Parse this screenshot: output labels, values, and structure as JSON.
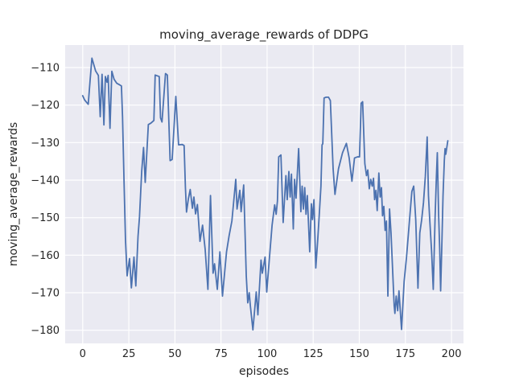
{
  "colors": {
    "figure_background": "#ffffff",
    "axes_background": "#eaeaf2",
    "grid": "#ffffff",
    "line": "#4c72b0",
    "text": "#262626"
  },
  "chart_data": {
    "type": "line",
    "title": "moving_average_rewards of DDPG",
    "xlabel": "episodes",
    "ylabel": "moving_average_rewards",
    "xlim": [
      -9.5,
      206.5
    ],
    "ylim": [
      -183.5,
      -104.0
    ],
    "xticks": [
      0,
      25,
      50,
      75,
      100,
      125,
      150,
      175,
      200
    ],
    "yticks": [
      -110,
      -120,
      -130,
      -140,
      -150,
      -160,
      -170,
      -180
    ],
    "grid": true,
    "legend_position": "none",
    "series": [
      {
        "name": "moving_average_rewards",
        "color": "#4c72b0",
        "x": [
          0,
          1,
          2,
          3,
          4,
          5,
          6,
          7,
          8.5,
          9.5,
          10.5,
          11.5,
          12.3,
          13.2,
          13.8,
          14.8,
          15.8,
          17,
          18.5,
          20,
          21,
          21.6,
          22.4,
          23.2,
          24.1,
          25.4,
          26.4,
          27.8,
          28.8,
          30,
          30.8,
          32,
          33,
          33.9,
          35.6,
          37,
          38.6,
          39.3,
          41.5,
          42.2,
          43,
          44.9,
          45.9,
          47.4,
          48.5,
          50.5,
          52,
          54,
          55,
          55.7,
          56.3,
          57.3,
          58.3,
          59.5,
          60.3,
          61.2,
          62.2,
          63.6,
          65,
          66.4,
          67.9,
          69.3,
          70.7,
          71.5,
          73,
          74.4,
          75.8,
          78,
          79.4,
          80.9,
          83,
          83.7,
          85.2,
          85.9,
          87.3,
          88.7,
          89.5,
          90.3,
          90.9,
          92.3,
          94.1,
          95,
          96.7,
          97.4,
          98.9,
          99.8,
          101.3,
          102.7,
          104.1,
          104.9,
          105.6,
          106.3,
          107.5,
          108.7,
          110.2,
          110.9,
          111.8,
          112.5,
          113.2,
          114.2,
          114.9,
          115.7,
          117.1,
          118.3,
          119,
          119.7,
          120.4,
          121.1,
          121.8,
          123.1,
          124,
          124.6,
          125.4,
          126.4,
          127.4,
          128.3,
          129.2,
          129.8,
          130.2,
          130.9,
          132,
          133.3,
          134.3,
          135.8,
          136.8,
          138.7,
          140.9,
          143,
          144.5,
          146,
          147.4,
          149,
          150.1,
          151,
          151.8,
          153,
          153.9,
          154.6,
          155.4,
          156.2,
          157,
          157.7,
          158.3,
          159,
          159.7,
          160.6,
          161.3,
          162,
          162.6,
          163.3,
          164,
          164.7,
          165.5,
          166.4,
          167.2,
          168.9,
          169.3,
          170,
          170.8,
          171.5,
          172.9,
          174.3,
          175.6,
          177,
          178.5,
          179.5,
          180.6,
          181.8,
          182.8,
          183.8,
          184.8,
          185.8,
          186.8,
          187.5,
          188.2,
          189.2,
          190.1,
          191.1,
          191.8,
          192.3,
          193,
          193.6,
          194.1,
          194.7,
          195.4,
          196.1,
          196.5,
          196.9,
          198
        ],
        "y": [
          -117.5,
          -118.6,
          -119.2,
          -119.8,
          -113.5,
          -107.5,
          -109.2,
          -110.9,
          -112.1,
          -123.1,
          -111.8,
          -125.3,
          -112.4,
          -113.9,
          -112.1,
          -126.2,
          -111,
          -113.1,
          -114.2,
          -114.6,
          -114.9,
          -123.1,
          -140,
          -155.9,
          -165.5,
          -160.9,
          -168.7,
          -160.5,
          -168.2,
          -155,
          -149.8,
          -137.6,
          -131.3,
          -140.6,
          -125.2,
          -124.8,
          -124.1,
          -112,
          -112.4,
          -123.4,
          -124.5,
          -111.6,
          -112,
          -134.8,
          -134.5,
          -117.7,
          -130.6,
          -130.5,
          -130.8,
          -142,
          -148.5,
          -145,
          -142.5,
          -147.5,
          -144.5,
          -149,
          -146.5,
          -156.3,
          -152,
          -158.4,
          -169.1,
          -144.1,
          -164.8,
          -162.3,
          -169.1,
          -159.1,
          -170.9,
          -159.1,
          -154.8,
          -150.9,
          -139.8,
          -147.7,
          -142.7,
          -148.4,
          -141.3,
          -165.5,
          -172.7,
          -170,
          -173.4,
          -179.9,
          -169.8,
          -175.9,
          -161.3,
          -164.8,
          -160.5,
          -169.8,
          -160.5,
          -152,
          -146.6,
          -149.1,
          -145.6,
          -133.8,
          -133.3,
          -151.3,
          -138.8,
          -145.2,
          -137.7,
          -144.5,
          -138.4,
          -153,
          -139.8,
          -144.8,
          -131.6,
          -148.4,
          -141.6,
          -147.7,
          -142,
          -149.1,
          -144.1,
          -159.1,
          -146.3,
          -150.5,
          -145.2,
          -163.4,
          -156.3,
          -149.1,
          -141.6,
          -130.6,
          -130.3,
          -118.1,
          -117.9,
          -117.9,
          -118.8,
          -137,
          -143.8,
          -137,
          -132.7,
          -130.2,
          -134.1,
          -140.3,
          -134.1,
          -133.8,
          -133.8,
          -119.5,
          -119.1,
          -135.6,
          -138.8,
          -137.3,
          -142.3,
          -139.8,
          -141.6,
          -139.5,
          -145.2,
          -142.7,
          -148.1,
          -138.1,
          -144.5,
          -142,
          -149.5,
          -147,
          -153.4,
          -150.9,
          -170.9,
          -147.7,
          -154.1,
          -173.4,
          -175.5,
          -170.9,
          -174.8,
          -169.5,
          -179.8,
          -167,
          -160.5,
          -152,
          -143,
          -141.6,
          -150.6,
          -168.8,
          -154.1,
          -150.6,
          -146,
          -139,
          -128.5,
          -144.1,
          -150.6,
          -159,
          -169.1,
          -149.8,
          -139.1,
          -132.7,
          -149.1,
          -158.4,
          -169.5,
          -158.4,
          -144.1,
          -134.8,
          -131.6,
          -133.1,
          -129.5
        ]
      }
    ]
  }
}
